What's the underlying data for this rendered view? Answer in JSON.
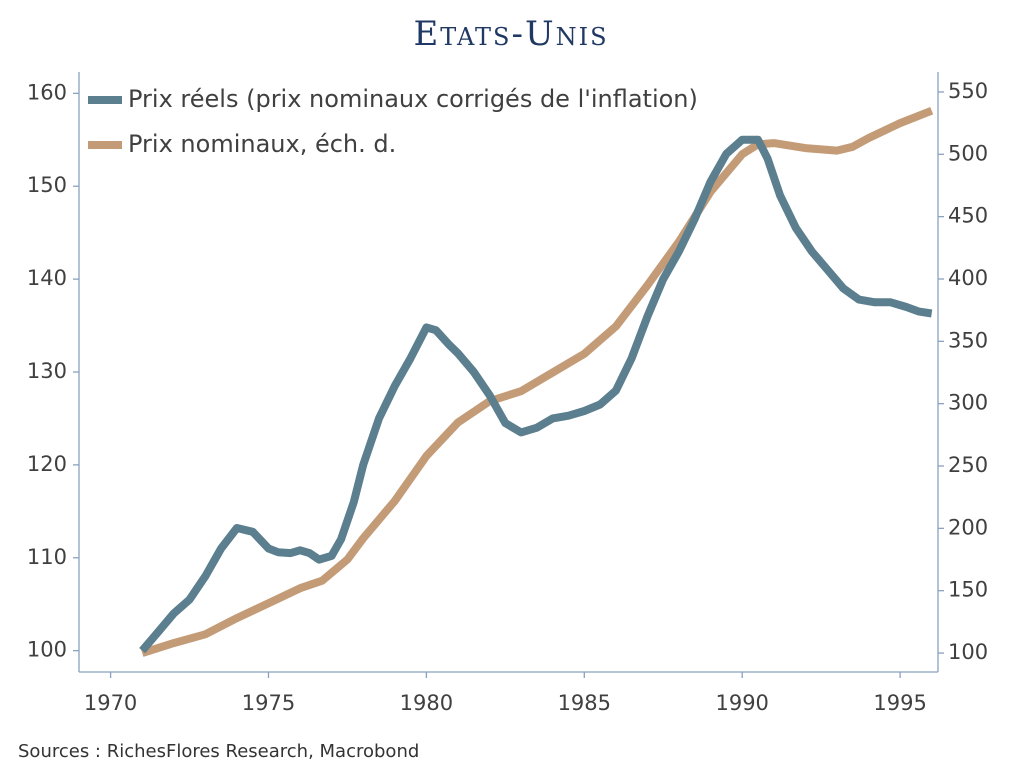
{
  "chart_data": {
    "type": "line",
    "title": "Etats-Unis",
    "source": "Sources : RichesFlores Research, Macrobond",
    "xlim": [
      1969,
      1996.2
    ],
    "xticks": [
      1970,
      1975,
      1980,
      1985,
      1990,
      1995
    ],
    "ylim": [
      97.7,
      162.3
    ],
    "yticks": [
      100,
      110,
      120,
      130,
      140,
      150,
      160
    ],
    "y2lim": [
      84.8,
      566
    ],
    "y2ticks": [
      100,
      150,
      200,
      250,
      300,
      350,
      400,
      450,
      500,
      550
    ],
    "legend": "upper-left",
    "series": [
      {
        "name": "Prix réels (prix nominaux corrigés de l'inflation)",
        "color": "#5b7f8e",
        "x": [
          1971,
          1971.5,
          1972,
          1972.5,
          1973,
          1973.5,
          1974,
          1974.5,
          1975,
          1975.3,
          1975.7,
          1976,
          1976.3,
          1976.6,
          1977,
          1977.3,
          1977.7,
          1978,
          1978.5,
          1979,
          1979.5,
          1980,
          1980.3,
          1980.7,
          1981,
          1981.5,
          1982,
          1982.5,
          1983,
          1983.5,
          1984,
          1984.5,
          1985,
          1985.5,
          1986,
          1986.5,
          1987,
          1987.5,
          1988,
          1988.5,
          1989,
          1989.5,
          1990,
          1990.5,
          1990.8,
          1991.2,
          1991.7,
          1992.2,
          1992.7,
          1993.2,
          1993.7,
          1994.2,
          1994.7,
          1995.2,
          1995.6,
          1996
        ],
        "values": [
          100,
          102,
          104,
          105.5,
          108,
          111,
          113.2,
          112.8,
          111,
          110.6,
          110.5,
          110.8,
          110.5,
          109.8,
          110.2,
          112,
          116,
          120,
          125,
          128.5,
          131.5,
          134.8,
          134.5,
          133,
          132,
          130,
          127.5,
          124.5,
          123.5,
          124,
          125,
          125.3,
          125.8,
          126.5,
          128,
          131.5,
          136,
          140,
          143,
          146.5,
          150.5,
          153.5,
          155,
          155,
          153,
          149,
          145.5,
          143,
          141,
          139,
          137.8,
          137.5,
          137.5,
          137,
          136.5,
          136.3
        ]
      },
      {
        "name": "Prix nominaux, éch. d.",
        "color": "#c49b77",
        "axis": "y2",
        "x": [
          1971,
          1972,
          1973,
          1974,
          1975,
          1976,
          1976.7,
          1977.5,
          1978,
          1979,
          1980,
          1981,
          1982,
          1983,
          1984,
          1985,
          1986,
          1987,
          1988,
          1989,
          1990,
          1990.5,
          1991,
          1992,
          1993,
          1993.5,
          1994,
          1995,
          1996
        ],
        "values": [
          100,
          108,
          115,
          128,
          140,
          152,
          158,
          175,
          192,
          222,
          258,
          285,
          302,
          310,
          325,
          340,
          362,
          395,
          430,
          470,
          500,
          508,
          509,
          505,
          503,
          506,
          513,
          525,
          535
        ]
      }
    ]
  }
}
